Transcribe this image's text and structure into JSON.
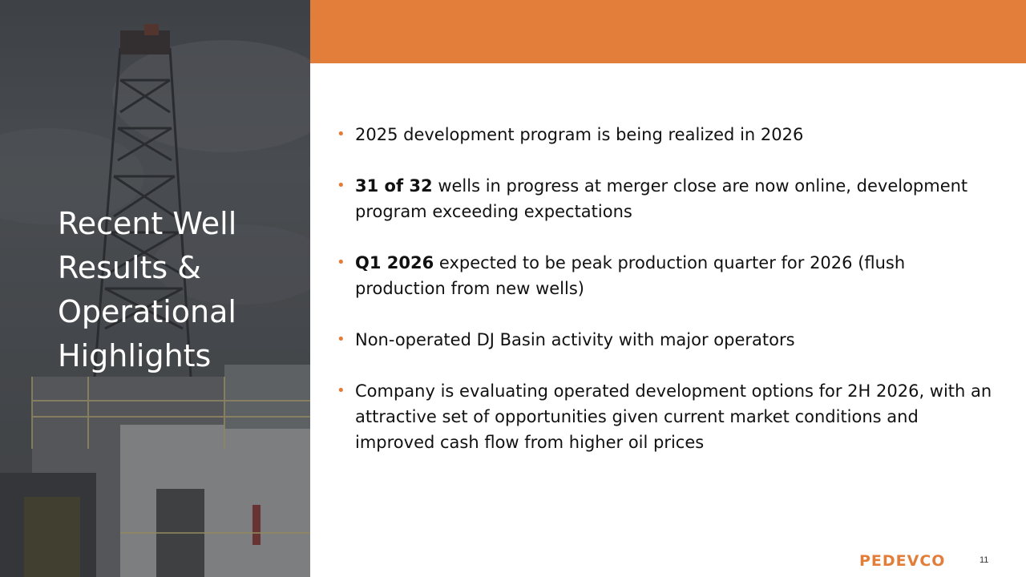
{
  "slide": {
    "title": "Recent Well Results & Operational Highlights",
    "page_number": "11",
    "logo_text": "PEDEVCO",
    "accent_color": "#e27d3a"
  },
  "bullets": [
    {
      "bold": "",
      "text": "2025 development program is being realized in 2026"
    },
    {
      "bold": "31 of 32",
      "text": " wells in progress at merger close are now online, development program exceeding expectations"
    },
    {
      "bold": "Q1 2026",
      "text": " expected to be peak production quarter for 2026 (flush production from new wells)"
    },
    {
      "bold": "",
      "text": "Non-operated DJ Basin activity with major operators"
    },
    {
      "bold": "",
      "text": "Company is evaluating operated development options for 2H 2026, with an attractive set of opportunities given current market conditions and improved cash flow from higher oil prices"
    }
  ],
  "image": {
    "subject": "drilling-rig-photo"
  }
}
